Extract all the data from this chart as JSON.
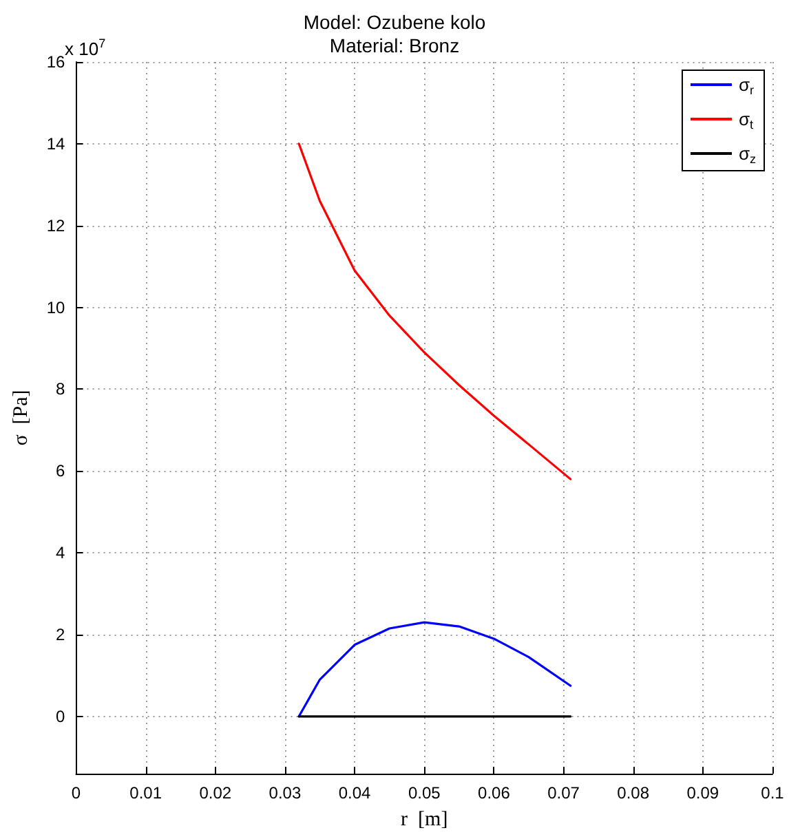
{
  "chart_data": {
    "type": "line",
    "title": "Model: Ozubene kolo",
    "subtitle": "Material: Bronz",
    "xlabel": "r  [m]",
    "ylabel": "σ  [Pa]",
    "annotations": [
      "x 10$^{7}$"
    ],
    "xlim": [
      0,
      0.1
    ],
    "xticks": [
      0,
      0.01,
      0.02,
      0.03,
      0.04,
      0.05,
      0.06,
      0.07,
      0.08,
      0.09,
      0.1
    ],
    "ylim": [
      -1.4,
      16
    ],
    "yticks": [
      0,
      2,
      4,
      6,
      8,
      10,
      12,
      14,
      16
    ],
    "grid": true,
    "legend": "top right",
    "marker": "none",
    "line_style": "solid",
    "series": [
      {
        "name": "σ$_{r}$",
        "color": "#0000ff",
        "x": [
          0.032,
          0.035,
          0.04,
          0.045,
          0.05,
          0.055,
          0.06,
          0.065,
          0.071
        ],
        "values": [
          0,
          0.9,
          1.75,
          2.15,
          2.3,
          2.2,
          1.9,
          1.45,
          0.75
        ]
      },
      {
        "name": "σ$_{t}$",
        "color": "#ff0000",
        "x": [
          0.032,
          0.035,
          0.04,
          0.045,
          0.05,
          0.055,
          0.06,
          0.065,
          0.071
        ],
        "values": [
          14,
          12.6,
          10.9,
          9.8,
          8.9,
          8.1,
          7.35,
          6.65,
          5.8
        ]
      },
      {
        "name": "σ$_{z}$",
        "color": "#000000",
        "x": [
          0.032,
          0.071
        ],
        "values": [
          0,
          0
        ]
      }
    ]
  }
}
